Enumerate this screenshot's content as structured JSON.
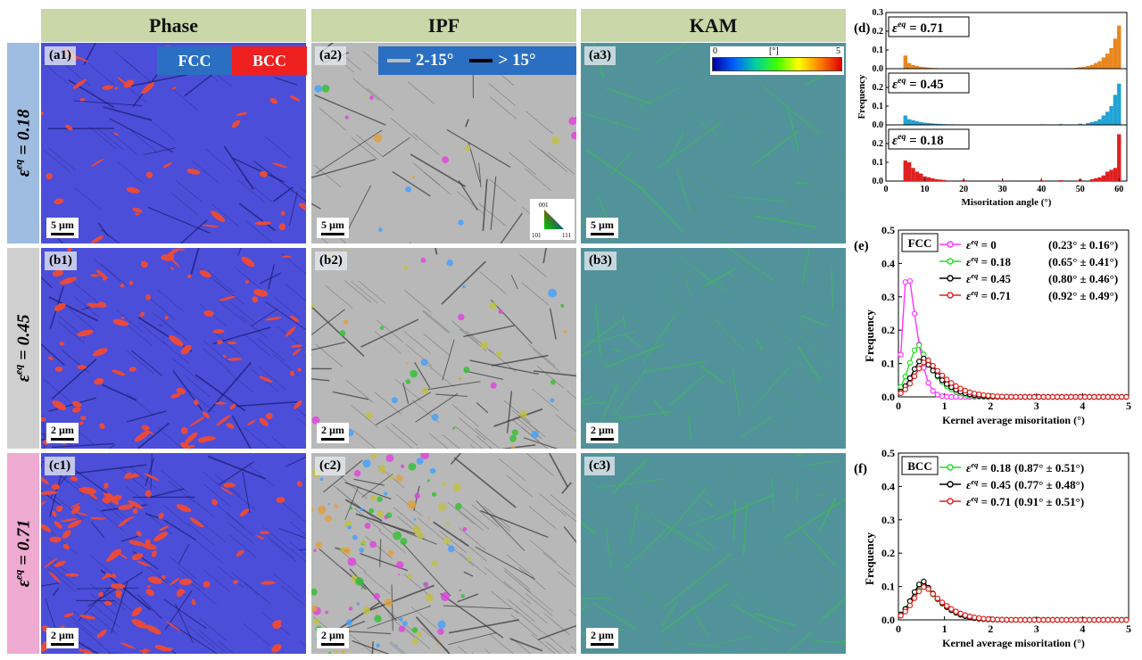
{
  "headers": {
    "phase": "Phase",
    "ipf": "IPF",
    "kam": "KAM"
  },
  "rows": [
    {
      "strain": "0.18",
      "labels": [
        "(a1)",
        "(a2)",
        "(a3)"
      ],
      "scale": "5 µm"
    },
    {
      "strain": "0.45",
      "labels": [
        "(b1)",
        "(b2)",
        "(b3)"
      ],
      "scale": "2 µm"
    },
    {
      "strain": "0.71",
      "labels": [
        "(c1)",
        "(c2)",
        "(c3)"
      ],
      "scale": "2 µm"
    }
  ],
  "strain_symbol": "ε",
  "strain_sup": "eq",
  "phase_legend": {
    "fcc": "FCC",
    "bcc": "BCC"
  },
  "gb_legend": {
    "low": "2-15°",
    "high": "> 15°"
  },
  "ipf_key": {
    "top": "001",
    "left": "101",
    "right": "111"
  },
  "kam_legend": {
    "min": "0",
    "max": "5",
    "unit": "[°]"
  },
  "colors": {
    "fcc": "#4b4ed9",
    "bcc": "#e84a3c",
    "header": "#c9d7a9",
    "row1": "#9fbde0",
    "row2": "#cfcfcf",
    "row3": "#eeaad0",
    "kam": "#4a9a8a"
  },
  "chart_data": [
    {
      "type": "bar",
      "panel_label": "(d)",
      "xlabel": "Misoritation angle (°)",
      "ylabel": "Frequency",
      "xlim": [
        0,
        62
      ],
      "x_ticks": [
        0,
        10,
        20,
        30,
        40,
        50,
        60
      ],
      "series": [
        {
          "name": "ε^eq = 0.71",
          "color": "#e8861f",
          "ylim": [
            0,
            0.3
          ],
          "y_ticks": [
            0.0,
            0.1,
            0.2,
            0.3
          ],
          "x": [
            5,
            6,
            7,
            8,
            9,
            10,
            11,
            12,
            13,
            14,
            15,
            16,
            17,
            18,
            19,
            20,
            45,
            47,
            49,
            50,
            51,
            52,
            53,
            54,
            55,
            56,
            57,
            58,
            59,
            60
          ],
          "values": [
            0.07,
            0.03,
            0.02,
            0.015,
            0.01,
            0.008,
            0.006,
            0.004,
            0.003,
            0.002,
            0.002,
            0.001,
            0.001,
            0.001,
            0.001,
            0.001,
            0.002,
            0.003,
            0.005,
            0.008,
            0.01,
            0.015,
            0.02,
            0.03,
            0.04,
            0.06,
            0.08,
            0.11,
            0.16,
            0.23
          ]
        },
        {
          "name": "ε^eq = 0.45",
          "color": "#22a3d6",
          "ylim": [
            0,
            0.3
          ],
          "y_ticks": [
            0.0,
            0.1,
            0.2,
            0.3
          ],
          "x": [
            5,
            6,
            7,
            8,
            9,
            10,
            11,
            12,
            13,
            14,
            15,
            16,
            17,
            18,
            20,
            25,
            40,
            45,
            50,
            52,
            53,
            54,
            55,
            56,
            57,
            58,
            59,
            60
          ],
          "values": [
            0.05,
            0.03,
            0.025,
            0.02,
            0.015,
            0.012,
            0.01,
            0.008,
            0.006,
            0.005,
            0.004,
            0.003,
            0.003,
            0.002,
            0.002,
            0.002,
            0.003,
            0.004,
            0.006,
            0.01,
            0.015,
            0.02,
            0.03,
            0.05,
            0.07,
            0.1,
            0.16,
            0.22
          ]
        },
        {
          "name": "ε^eq = 0.18",
          "color": "#e02020",
          "ylim": [
            0,
            0.3
          ],
          "y_ticks": [
            0.0,
            0.1,
            0.2,
            0.3
          ],
          "x": [
            5,
            6,
            7,
            8,
            9,
            10,
            11,
            12,
            13,
            14,
            15,
            20,
            30,
            40,
            45,
            50,
            53,
            54,
            55,
            56,
            57,
            58,
            59,
            60
          ],
          "values": [
            0.11,
            0.1,
            0.07,
            0.05,
            0.04,
            0.025,
            0.02,
            0.015,
            0.01,
            0.008,
            0.006,
            0.005,
            0.003,
            0.004,
            0.005,
            0.008,
            0.01,
            0.015,
            0.02,
            0.03,
            0.05,
            0.06,
            0.07,
            0.25
          ]
        }
      ]
    },
    {
      "type": "line",
      "panel_label": "(e)",
      "phase_tag": "FCC",
      "xlabel": "Kernel average misoritation (°)",
      "ylabel": "Frequency",
      "xlim": [
        0,
        5
      ],
      "ylim": [
        0,
        0.5
      ],
      "x_ticks": [
        0,
        1,
        2,
        3,
        4,
        5
      ],
      "y_ticks": [
        0.0,
        0.1,
        0.2,
        0.3,
        0.4,
        0.5
      ],
      "series": [
        {
          "name": "ε^eq = 0",
          "stats": "(0.23° ± 0.16°)",
          "color": "#ff33ff",
          "peak": 0.2,
          "height": 0.39,
          "sigma": 0.1,
          "tail": 0.5
        },
        {
          "name": "ε^eq = 0.18",
          "stats": "(0.65° ± 0.41°)",
          "color": "#22dd22",
          "peak": 0.45,
          "height": 0.155,
          "sigma": 0.22,
          "tail": 0.55
        },
        {
          "name": "ε^eq = 0.45",
          "stats": "(0.80° ± 0.46°)",
          "color": "#000000",
          "peak": 0.55,
          "height": 0.115,
          "sigma": 0.25,
          "tail": 0.6
        },
        {
          "name": "ε^eq = 0.71",
          "stats": "(0.92° ± 0.49°)",
          "color": "#e02020",
          "peak": 0.65,
          "height": 0.11,
          "sigma": 0.28,
          "tail": 0.65
        }
      ]
    },
    {
      "type": "line",
      "panel_label": "(f)",
      "phase_tag": "BCC",
      "xlabel": "Kernel average misoritation (°)",
      "ylabel": "Frequency",
      "xlim": [
        0,
        5
      ],
      "ylim": [
        0,
        0.5
      ],
      "x_ticks": [
        0,
        1,
        2,
        3,
        4,
        5
      ],
      "y_ticks": [
        0.0,
        0.1,
        0.2,
        0.3,
        0.4,
        0.5
      ],
      "series": [
        {
          "name": "ε^eq = 0.18",
          "stats": "(0.87° ± 0.51°)",
          "color": "#22dd22",
          "peak": 0.55,
          "height": 0.11,
          "sigma": 0.26,
          "tail": 0.6
        },
        {
          "name": "ε^eq = 0.45",
          "stats": "(0.77° ± 0.48°)",
          "color": "#000000",
          "peak": 0.55,
          "height": 0.115,
          "sigma": 0.25,
          "tail": 0.6
        },
        {
          "name": "ε^eq = 0.71",
          "stats": "(0.91° ± 0.51°)",
          "color": "#e02020",
          "peak": 0.6,
          "height": 0.1,
          "sigma": 0.27,
          "tail": 0.65
        }
      ]
    }
  ]
}
